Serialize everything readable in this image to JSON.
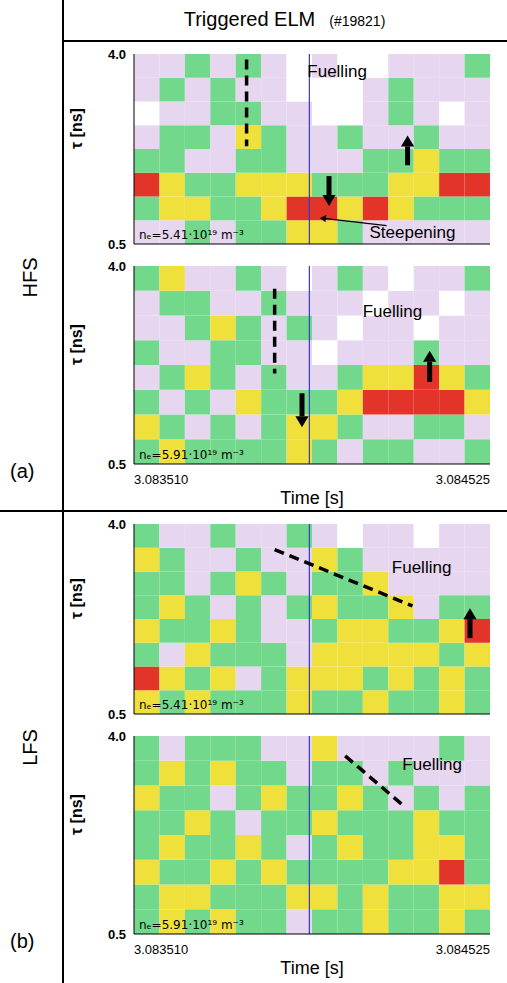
{
  "title": "Triggered ELM",
  "shot": "(#19821)",
  "groups": [
    {
      "name": "HFS",
      "letter": "(a)"
    },
    {
      "name": "LFS",
      "letter": "(b)"
    }
  ],
  "chart_data": [
    {
      "type": "heatmap",
      "group": "HFS",
      "y_label": "τ [ns]",
      "tick_labels": "y",
      "xlim": [
        3.08351,
        3.084525
      ],
      "ylim": [
        0.5,
        4.0
      ],
      "yticks": [
        0.5,
        {
          "value": 4.0,
          "label": "4.0"
        }
      ],
      "zlim": [
        0,
        4
      ],
      "x_edges": [
        3.08351,
        3.0835825,
        3.083655,
        3.0837275,
        3.0838,
        3.0838725,
        3.083945,
        3.0840175,
        3.08409,
        3.0841625,
        3.084235,
        3.0843075,
        3.08438,
        3.0844525,
        3.084525
      ],
      "y_edges": [
        0.5,
        0.9375,
        1.375,
        1.8125,
        2.25,
        2.6875,
        3.125,
        3.5625,
        4.0
      ],
      "cells": [
        [
          1,
          1,
          2,
          1,
          2,
          2,
          3,
          3,
          2,
          1,
          1,
          1,
          1,
          1
        ],
        [
          2,
          3,
          3,
          2,
          2,
          3,
          4,
          4,
          3,
          4,
          3,
          2,
          2,
          2
        ],
        [
          4,
          3,
          2,
          2,
          3,
          3,
          3,
          2,
          2,
          2,
          3,
          3,
          4,
          4
        ],
        [
          2,
          2,
          1,
          1,
          2,
          2,
          1,
          1,
          1,
          2,
          2,
          3,
          2,
          2
        ],
        [
          1,
          2,
          2,
          1,
          3,
          2,
          1,
          1,
          2,
          1,
          1,
          2,
          1,
          1
        ],
        [
          0,
          1,
          1,
          2,
          2,
          1,
          1,
          0,
          0,
          1,
          2,
          1,
          0,
          1
        ],
        [
          1,
          2,
          1,
          2,
          1,
          1,
          0,
          0,
          0,
          1,
          2,
          1,
          1,
          1
        ],
        [
          1,
          1,
          2,
          1,
          2,
          1,
          0,
          1,
          0,
          0,
          1,
          1,
          1,
          2
        ]
      ],
      "density": "nₑ=5.41·10¹⁹ m⁻³",
      "marker_time": 3.08401,
      "texts": [
        {
          "text": "Fuelling",
          "x": 3.084089,
          "y": 3.69
        },
        {
          "text": "Steepening",
          "x": 3.084304,
          "y": 0.72
        }
      ],
      "dashed_lines": [
        {
          "x1": 3.083831,
          "y1": 3.9,
          "x2": 3.083831,
          "y2": 2.3
        }
      ],
      "arrows": [
        {
          "x": 3.084066,
          "y_from": 1.75,
          "y_to": 1.2
        },
        {
          "x": 3.08429,
          "y_from": 1.95,
          "y_to": 2.5
        }
      ],
      "leaders": [
        {
          "x1": 3.08423,
          "y1": 0.84,
          "x2": 3.08404,
          "y2": 0.98
        }
      ]
    },
    {
      "type": "heatmap",
      "group": "HFS",
      "y_label": "τ [ns]",
      "x_label": "Time [s]",
      "xlim": [
        3.08351,
        3.084525
      ],
      "xticks": [
        {
          "value": 3.08351,
          "label": "3.083510"
        },
        {
          "value": 3.084525,
          "label": "3.084525"
        }
      ],
      "ylim": [
        0.5,
        4.0
      ],
      "yticks": [
        0.5,
        {
          "value": 4.0,
          "label": "4.0"
        }
      ],
      "zlim": [
        0,
        4
      ],
      "x_edges": [
        3.08351,
        3.0835825,
        3.083655,
        3.0837275,
        3.0838,
        3.0838725,
        3.083945,
        3.0840175,
        3.08409,
        3.0841625,
        3.084235,
        3.0843075,
        3.08438,
        3.0844525,
        3.084525
      ],
      "y_edges": [
        0.5,
        0.9375,
        1.375,
        1.8125,
        2.25,
        2.6875,
        3.125,
        3.5625,
        4.0
      ],
      "cells": [
        [
          2,
          3,
          2,
          2,
          2,
          2,
          3,
          2,
          1,
          2,
          2,
          1,
          1,
          2
        ],
        [
          3,
          2,
          1,
          2,
          1,
          2,
          3,
          3,
          2,
          1,
          1,
          2,
          2,
          1
        ],
        [
          2,
          1,
          2,
          1,
          3,
          2,
          2,
          2,
          3,
          4,
          4,
          4,
          4,
          3
        ],
        [
          1,
          2,
          3,
          2,
          1,
          2,
          1,
          1,
          2,
          3,
          3,
          4,
          3,
          2
        ],
        [
          2,
          1,
          1,
          2,
          2,
          1,
          1,
          0,
          1,
          1,
          1,
          2,
          1,
          1
        ],
        [
          1,
          1,
          2,
          3,
          2,
          1,
          2,
          1,
          0,
          1,
          1,
          0,
          1,
          1
        ],
        [
          1,
          2,
          2,
          1,
          1,
          2,
          1,
          1,
          1,
          0,
          1,
          1,
          0,
          1
        ],
        [
          2,
          3,
          1,
          1,
          2,
          1,
          0,
          1,
          2,
          1,
          0,
          1,
          1,
          2
        ]
      ],
      "density": "nₑ=5.91·10¹⁹ m⁻³",
      "marker_time": 3.08401,
      "texts": [
        {
          "text": "Fuelling",
          "x": 3.084247,
          "y": 3.21
        }
      ],
      "dashed_lines": [
        {
          "x1": 3.083911,
          "y1": 3.6,
          "x2": 3.083911,
          "y2": 2.1
        }
      ],
      "arrows": [
        {
          "x": 3.083989,
          "y_from": 1.75,
          "y_to": 1.15
        },
        {
          "x": 3.084353,
          "y_from": 1.95,
          "y_to": 2.5
        }
      ]
    },
    {
      "type": "heatmap",
      "group": "LFS",
      "y_label": "τ [ns]",
      "tick_labels": "y",
      "xlim": [
        3.08351,
        3.084525
      ],
      "ylim": [
        0.5,
        4.0
      ],
      "yticks": [
        0.5,
        {
          "value": 4.0,
          "label": "4.0"
        }
      ],
      "zlim": [
        0,
        4
      ],
      "x_edges": [
        3.08351,
        3.0835825,
        3.083655,
        3.0837275,
        3.0838,
        3.0838725,
        3.083945,
        3.0840175,
        3.08409,
        3.0841625,
        3.084235,
        3.0843075,
        3.08438,
        3.0844525,
        3.084525
      ],
      "y_edges": [
        0.5,
        0.9375,
        1.375,
        1.8125,
        2.25,
        2.6875,
        3.125,
        3.5625,
        4.0
      ],
      "cells": [
        [
          3,
          2,
          3,
          2,
          2,
          2,
          3,
          2,
          2,
          3,
          2,
          2,
          3,
          2
        ],
        [
          4,
          3,
          2,
          3,
          1,
          2,
          3,
          3,
          3,
          2,
          3,
          2,
          3,
          2
        ],
        [
          2,
          1,
          3,
          2,
          2,
          2,
          1,
          3,
          3,
          3,
          3,
          3,
          2,
          3
        ],
        [
          3,
          2,
          2,
          3,
          2,
          1,
          1,
          2,
          3,
          3,
          2,
          2,
          3,
          4
        ],
        [
          2,
          3,
          2,
          1,
          2,
          1,
          2,
          3,
          2,
          2,
          3,
          1,
          2,
          2
        ],
        [
          2,
          2,
          1,
          2,
          3,
          2,
          1,
          2,
          2,
          3,
          1,
          1,
          1,
          1
        ],
        [
          3,
          2,
          1,
          1,
          2,
          1,
          1,
          3,
          2,
          1,
          1,
          1,
          1,
          1
        ],
        [
          2,
          1,
          1,
          2,
          1,
          1,
          2,
          1,
          0,
          1,
          1,
          0,
          1,
          1
        ]
      ],
      "density": "nₑ=5.41·10¹⁹ m⁻³",
      "marker_time": 3.08401,
      "texts": [
        {
          "text": "Fuelling",
          "x": 3.08433,
          "y": 3.2
        }
      ],
      "dashed_lines": [
        {
          "x1": 3.083911,
          "y1": 3.53,
          "x2": 3.084304,
          "y2": 2.49
        }
      ],
      "arrows": [
        {
          "x": 3.084468,
          "y_from": 1.9,
          "y_to": 2.45
        }
      ]
    },
    {
      "type": "heatmap",
      "group": "LFS",
      "y_label": "τ [ns]",
      "x_label": "Time [s]",
      "xlim": [
        3.08351,
        3.084525
      ],
      "xticks": [
        {
          "value": 3.08351,
          "label": "3.083510"
        },
        {
          "value": 3.084525,
          "label": "3.084525"
        }
      ],
      "ylim": [
        0.5,
        4.0
      ],
      "yticks": [
        0.5,
        {
          "value": 4.0,
          "label": "4.0"
        }
      ],
      "zlim": [
        0,
        4
      ],
      "x_edges": [
        3.08351,
        3.0835825,
        3.083655,
        3.0837275,
        3.0838,
        3.0838725,
        3.083945,
        3.0840175,
        3.08409,
        3.0841625,
        3.084235,
        3.0843075,
        3.08438,
        3.0844525,
        3.084525
      ],
      "y_edges": [
        0.5,
        0.9375,
        1.375,
        1.8125,
        2.25,
        2.6875,
        3.125,
        3.5625,
        4.0
      ],
      "cells": [
        [
          2,
          3,
          2,
          3,
          2,
          2,
          1,
          2,
          2,
          3,
          2,
          2,
          3,
          2
        ],
        [
          2,
          3,
          3,
          2,
          2,
          2,
          3,
          3,
          2,
          3,
          2,
          2,
          3,
          3
        ],
        [
          3,
          2,
          2,
          3,
          2,
          3,
          2,
          2,
          2,
          2,
          3,
          3,
          4,
          2
        ],
        [
          2,
          3,
          2,
          2,
          3,
          2,
          1,
          2,
          3,
          2,
          2,
          3,
          3,
          2
        ],
        [
          2,
          2,
          3,
          2,
          1,
          2,
          2,
          3,
          2,
          2,
          2,
          3,
          2,
          2
        ],
        [
          3,
          2,
          2,
          1,
          2,
          3,
          2,
          2,
          3,
          2,
          1,
          2,
          1,
          2
        ],
        [
          2,
          3,
          2,
          3,
          2,
          2,
          1,
          2,
          2,
          1,
          2,
          1,
          1,
          1
        ],
        [
          2,
          1,
          2,
          2,
          2,
          1,
          1,
          3,
          1,
          1,
          1,
          1,
          2,
          1
        ]
      ],
      "density": "nₑ=5.91·10¹⁹ m⁻³",
      "marker_time": 3.08401,
      "texts": [
        {
          "text": "Fuelling",
          "x": 3.08436,
          "y": 3.5
        }
      ],
      "dashed_lines": [
        {
          "x1": 3.084112,
          "y1": 3.65,
          "x2": 3.084276,
          "y2": 2.78
        }
      ],
      "arrows": []
    }
  ]
}
